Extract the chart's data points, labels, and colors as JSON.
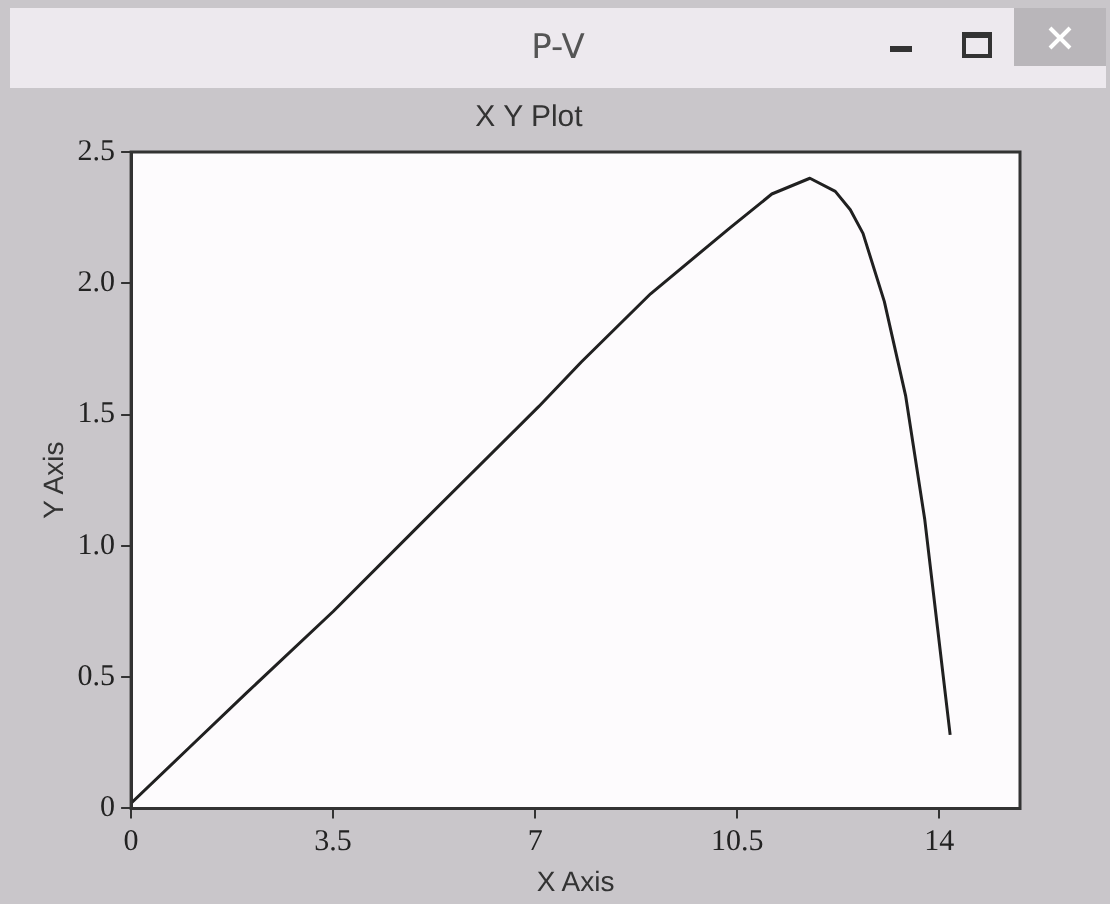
{
  "chart_data": {
    "type": "line",
    "title": "X Y Plot",
    "xlabel": "X Axis",
    "ylabel": "Y Axis",
    "annotations": [
      "P-V"
    ],
    "x": [
      0,
      1,
      2,
      3.5,
      5,
      7.06,
      7.8,
      9,
      10.37,
      11.1,
      11.76,
      12.2,
      12.46,
      12.68,
      13.05,
      13.42,
      13.75,
      13.97,
      14.19
    ],
    "series": [
      {
        "color": "#202020",
        "values": [
          0.02,
          0.23,
          0.44,
          0.75,
          1.08,
          1.53,
          1.7,
          1.96,
          2.21,
          2.34,
          2.4,
          2.35,
          2.28,
          2.19,
          1.93,
          1.57,
          1.1,
          0.69,
          0.28
        ]
      }
    ],
    "xlim": [
      0,
      15.4
    ],
    "xticks": [
      0,
      3.5,
      7,
      10.5,
      14
    ],
    "ylim": [
      0,
      2.5
    ],
    "yticks": [
      0,
      {
        "value": 0.5,
        "label": "0.5"
      },
      {
        "value": 1,
        "label": "1.0"
      },
      {
        "value": 1.5,
        "label": "1.5"
      },
      {
        "value": 2,
        "label": "2.0"
      },
      {
        "value": 2.5,
        "label": "2.5"
      }
    ],
    "marker": "none",
    "line_style": "solid"
  }
}
